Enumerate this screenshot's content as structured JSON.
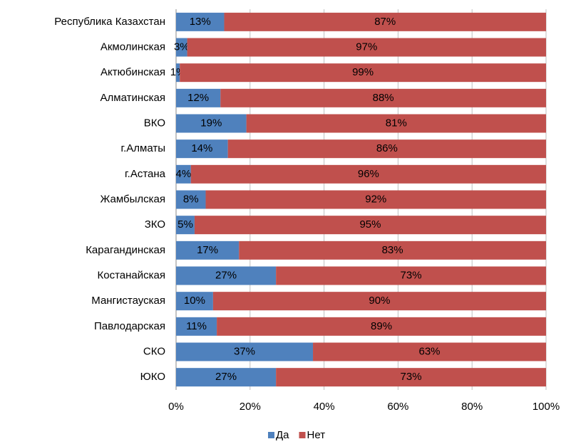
{
  "chart_data": {
    "type": "stacked-bar-horizontal",
    "categories": [
      "Республика Казахстан",
      "Акмолинская",
      "Актюбинская",
      "Алматинская",
      "ВКО",
      "г.Алматы",
      "г.Астана",
      "Жамбылская",
      "ЗКО",
      "Карагандинская",
      "Костанайская",
      "Мангистауская",
      "Павлодарская",
      "СКО",
      "ЮКО"
    ],
    "series": [
      {
        "name": "Да",
        "color": "#4f81bd",
        "values": [
          13,
          3,
          1,
          12,
          19,
          14,
          4,
          8,
          5,
          17,
          27,
          10,
          11,
          37,
          27
        ],
        "value_labels": [
          "13%",
          "3%",
          "1%",
          "12%",
          "19%",
          "14%",
          "4%",
          "8%",
          "5%",
          "17%",
          "27%",
          "10%",
          "11%",
          "37%",
          "27%"
        ]
      },
      {
        "name": "Нет",
        "color": "#c0504d",
        "values": [
          87,
          97,
          99,
          88,
          81,
          86,
          96,
          92,
          95,
          83,
          73,
          90,
          89,
          63,
          73
        ],
        "value_labels": [
          "87%",
          "97%",
          "99%",
          "88%",
          "81%",
          "86%",
          "96%",
          "92%",
          "95%",
          "83%",
          "73%",
          "90%",
          "89%",
          "63%",
          "73%"
        ]
      }
    ],
    "xlim": [
      0,
      100
    ],
    "xticks": [
      {
        "value": 0,
        "label": "0%"
      },
      {
        "value": 20,
        "label": "20%"
      },
      {
        "value": 40,
        "label": "40%"
      },
      {
        "value": 60,
        "label": "60%"
      },
      {
        "value": 80,
        "label": "80%"
      },
      {
        "value": 100,
        "label": "100%"
      }
    ],
    "grid": true,
    "legend": "bottom"
  }
}
